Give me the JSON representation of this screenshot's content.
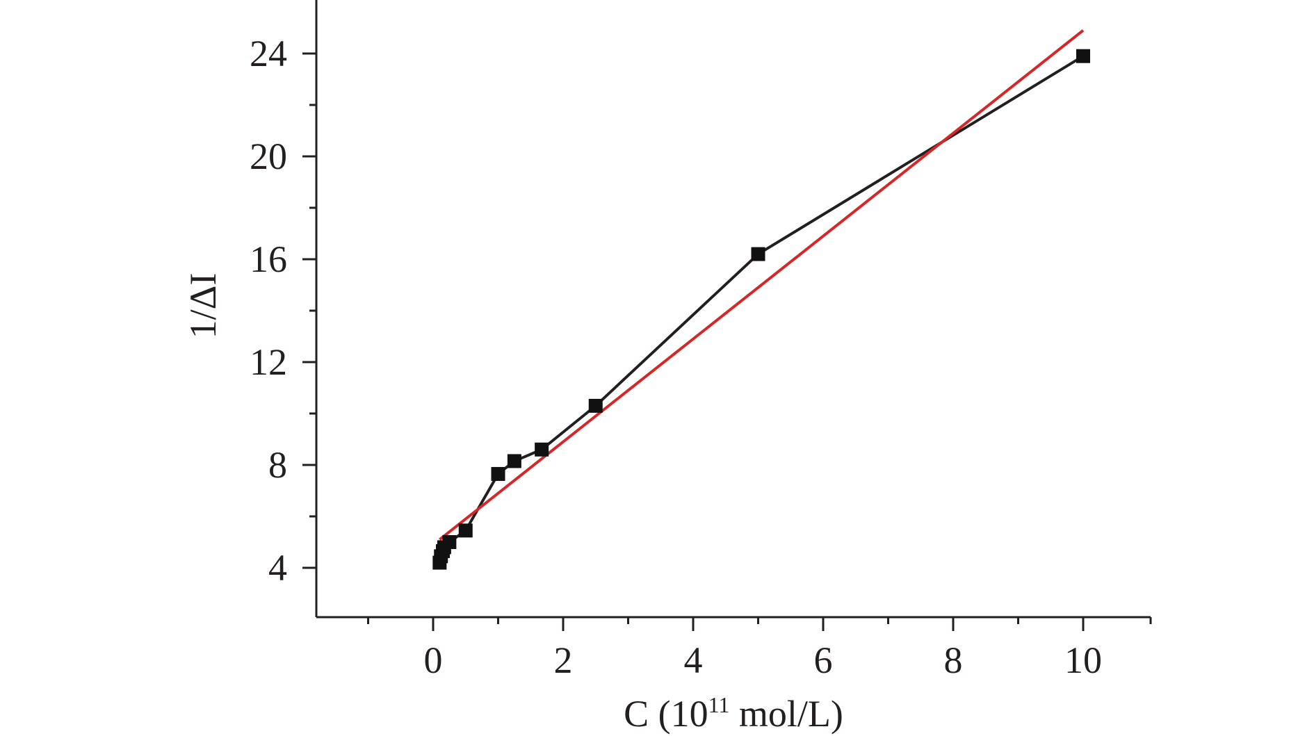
{
  "chart_data": {
    "type": "line",
    "xlabel_main": "C (10",
    "xlabel_sup": "11",
    "xlabel_tail": " mol/L)",
    "ylabel": "1/ΔI",
    "xlim": [
      -1.8,
      11
    ],
    "ylim": [
      2,
      26
    ],
    "x_ticks": [
      0,
      2,
      4,
      6,
      8,
      10
    ],
    "x_tick_labels": [
      "0",
      "2",
      "4",
      "6",
      "8",
      "10"
    ],
    "x_minor_ticks": [
      -1,
      1,
      3,
      5,
      7,
      9
    ],
    "y_ticks": [
      4,
      8,
      12,
      16,
      20,
      24
    ],
    "y_tick_labels": [
      "4",
      "8",
      "12",
      "16",
      "20",
      "24"
    ],
    "y_minor_ticks": [
      6,
      10,
      14,
      18,
      22
    ],
    "grid": false,
    "series": [
      {
        "kind": "data",
        "marker": "square",
        "color": "#231f20",
        "points": [
          {
            "x": 0.1,
            "y": 4.2
          },
          {
            "x": 0.12,
            "y": 4.45
          },
          {
            "x": 0.15,
            "y": 4.65
          },
          {
            "x": 0.17,
            "y": 4.8
          },
          {
            "x": 0.25,
            "y": 5.0
          },
          {
            "x": 0.5,
            "y": 5.45
          },
          {
            "x": 1.0,
            "y": 7.65
          },
          {
            "x": 1.25,
            "y": 8.15
          },
          {
            "x": 1.67,
            "y": 8.6
          },
          {
            "x": 2.5,
            "y": 10.3
          },
          {
            "x": 5.0,
            "y": 16.2
          },
          {
            "x": 10.0,
            "y": 23.9
          }
        ]
      },
      {
        "kind": "fit",
        "color": "#d62728",
        "points": [
          {
            "x": 0.1,
            "y": 5.1
          },
          {
            "x": 10.0,
            "y": 24.9
          }
        ]
      }
    ]
  }
}
